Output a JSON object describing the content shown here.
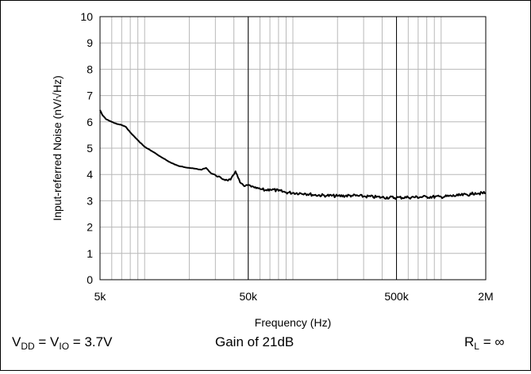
{
  "chart_data": {
    "type": "line",
    "title": "",
    "xlabel": "Frequency (Hz)",
    "ylabel": "Input-referred Noise (nV/√Hz)",
    "x_scale": "log",
    "xlim": [
      5000,
      2000000
    ],
    "ylim": [
      0,
      10
    ],
    "grid": true,
    "legend": "none",
    "x_ticks": [
      {
        "value": 5000,
        "label": "5k"
      },
      {
        "value": 50000,
        "label": "50k"
      },
      {
        "value": 500000,
        "label": "500k"
      },
      {
        "value": 2000000,
        "label": "2M"
      }
    ],
    "y_ticks": [
      {
        "value": 0,
        "label": "0"
      },
      {
        "value": 1,
        "label": "1"
      },
      {
        "value": 2,
        "label": "2"
      },
      {
        "value": 3,
        "label": "3"
      },
      {
        "value": 4,
        "label": "4"
      },
      {
        "value": 5,
        "label": "5"
      },
      {
        "value": 6,
        "label": "6"
      },
      {
        "value": 7,
        "label": "7"
      },
      {
        "value": 8,
        "label": "8"
      },
      {
        "value": 9,
        "label": "9"
      },
      {
        "value": 10,
        "label": "10"
      }
    ],
    "series": [
      {
        "color": "#000000",
        "x": [
          5000,
          5200,
          5500,
          6000,
          6500,
          7000,
          7500,
          8000,
          9000,
          10000,
          11500,
          13000,
          15000,
          17000,
          20000,
          22000,
          24000,
          26000,
          28000,
          30000,
          33000,
          36000,
          38000,
          40000,
          41000,
          42000,
          44000,
          47000,
          50000,
          55000,
          60000,
          65000,
          70000,
          80000,
          90000,
          100000,
          120000,
          140000,
          170000,
          200000,
          250000,
          300000,
          400000,
          500000,
          600000,
          800000,
          1000000,
          1300000,
          1600000,
          1700000,
          1800000,
          2000000
        ],
        "y": [
          6.45,
          6.25,
          6.1,
          6.0,
          5.92,
          5.88,
          5.8,
          5.6,
          5.3,
          5.05,
          4.85,
          4.65,
          4.45,
          4.32,
          4.25,
          4.22,
          4.18,
          4.25,
          4.05,
          3.98,
          3.85,
          3.78,
          3.8,
          4.0,
          4.12,
          4.0,
          3.7,
          3.55,
          3.6,
          3.5,
          3.45,
          3.4,
          3.44,
          3.38,
          3.32,
          3.3,
          3.28,
          3.22,
          3.2,
          3.18,
          3.2,
          3.17,
          3.13,
          3.12,
          3.13,
          3.15,
          3.15,
          3.2,
          3.25,
          3.3,
          3.28,
          3.3
        ]
      }
    ]
  },
  "conditions": {
    "left": {
      "v1": "V",
      "v1_sub": "DD",
      "eq1": " = V",
      "v2_sub": "IO",
      "eq2": " = 3.7V"
    },
    "center": "Gain of 21dB",
    "right": {
      "r": "R",
      "r_sub": "L",
      "eq": " = ∞"
    }
  }
}
